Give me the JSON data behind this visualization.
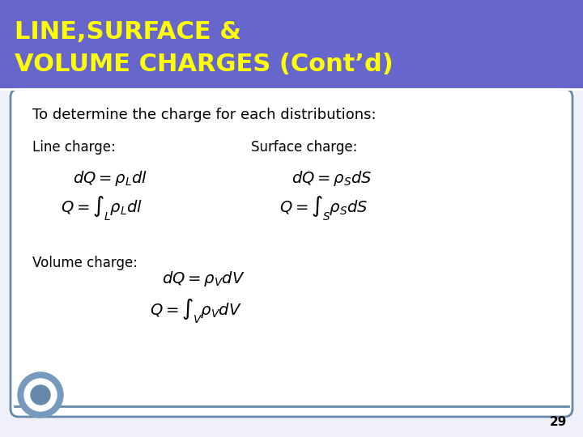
{
  "title_line1": "LINE,SURFACE &",
  "title_line2": "VOLUME CHARGES (Cont’d)",
  "title_bg_color": "#6666cc",
  "title_text_color": "#ffff00",
  "slide_bg_color": "#f0f0f8",
  "body_bg_color": "#ffffff",
  "border_color": "#6688aa",
  "intro_text": "To determine the charge for each distributions:",
  "line_label": "Line charge:",
  "surface_label": "Surface charge:",
  "volume_label": "Volume charge:",
  "page_number": "29",
  "accent_color": "#6688aa"
}
